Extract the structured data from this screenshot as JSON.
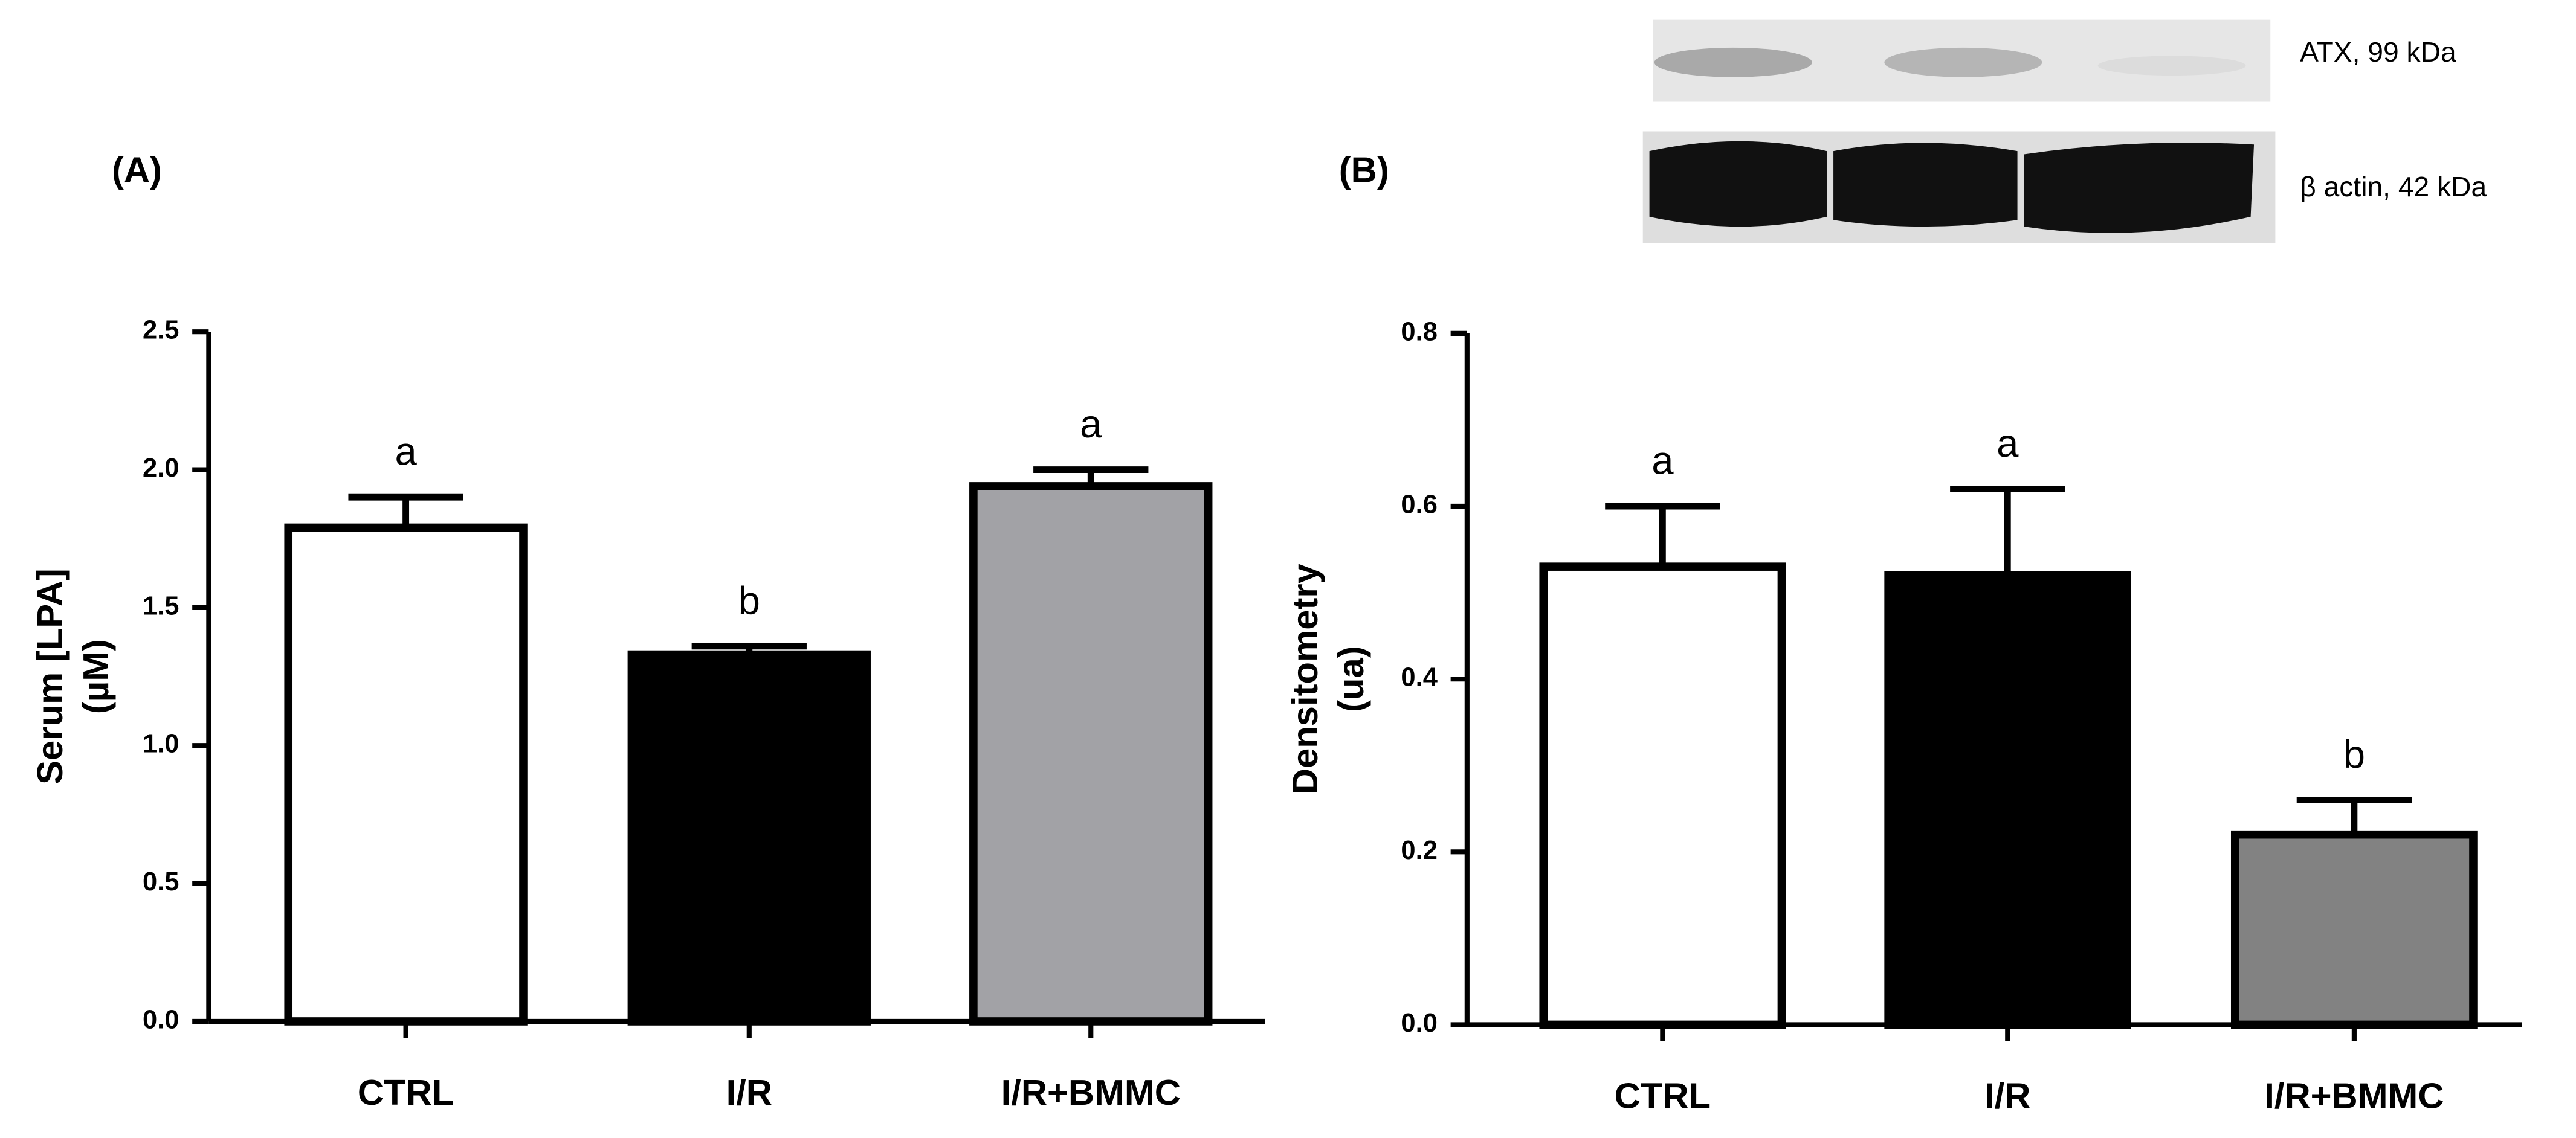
{
  "chart_data": [
    {
      "type": "bar",
      "panel_label": "(A)",
      "ylabel_lines": [
        "Serum [LPA]",
        "(µM)"
      ],
      "categories": [
        "CTRL",
        "I/R",
        "I/R+BMMC"
      ],
      "values": [
        1.79,
        1.33,
        1.94
      ],
      "errors": [
        0.11,
        0.03,
        0.06
      ],
      "annotations": [
        "a",
        "b",
        "a"
      ],
      "colors": [
        "#ffffff",
        "#000000",
        "#a2a2a6"
      ],
      "ylim": [
        0,
        2.5
      ],
      "yticks": [
        {
          "value": 0,
          "label": "0.0"
        },
        0.5,
        {
          "value": 1,
          "label": "1.0"
        },
        1.5,
        {
          "value": 2,
          "label": "2.0"
        },
        2.5
      ]
    },
    {
      "type": "bar",
      "panel_label": "(B)",
      "ylabel_lines": [
        "Densitometry",
        "(ua)"
      ],
      "categories": [
        "CTRL",
        "I/R",
        "I/R+BMMC"
      ],
      "values": [
        0.53,
        0.52,
        0.22
      ],
      "errors": [
        0.07,
        0.1,
        0.04
      ],
      "annotations": [
        "a",
        "a",
        "b"
      ],
      "colors": [
        "#ffffff",
        "#000000",
        "#828282"
      ],
      "ylim": [
        0,
        0.8
      ],
      "yticks": [
        {
          "value": 0,
          "label": "0.0"
        },
        0.2,
        0.4,
        0.6,
        0.8
      ],
      "blot_labels": [
        "ATX, 99 kDa",
        "β actin, 42 kDa"
      ]
    }
  ]
}
